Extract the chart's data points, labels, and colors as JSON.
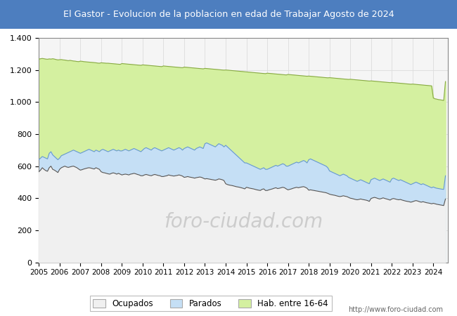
{
  "title": "El Gastor - Evolucion de la poblacion en edad de Trabajar Agosto de 2024",
  "title_bg": "#4d7ebf",
  "title_color": "white",
  "ylim": [
    0,
    1400
  ],
  "yticks": [
    0,
    200,
    400,
    600,
    800,
    1000,
    1200,
    1400
  ],
  "year_labels": [
    2005,
    2006,
    2007,
    2008,
    2009,
    2010,
    2011,
    2012,
    2013,
    2014,
    2015,
    2016,
    2017,
    2018,
    2019,
    2020,
    2021,
    2022,
    2023,
    2024
  ],
  "hab": [
    1268,
    1270,
    1272,
    1270,
    1268,
    1267,
    1269,
    1268,
    1270,
    1268,
    1265,
    1263,
    1264,
    1265,
    1263,
    1262,
    1260,
    1258,
    1260,
    1258,
    1256,
    1255,
    1253,
    1252,
    1255,
    1254,
    1252,
    1251,
    1250,
    1249,
    1248,
    1247,
    1246,
    1245,
    1243,
    1242,
    1245,
    1244,
    1243,
    1242,
    1242,
    1241,
    1240,
    1239,
    1238,
    1237,
    1236,
    1235,
    1240,
    1239,
    1238,
    1237,
    1236,
    1235,
    1234,
    1233,
    1232,
    1231,
    1230,
    1229,
    1232,
    1231,
    1230,
    1229,
    1228,
    1227,
    1226,
    1225,
    1224,
    1223,
    1222,
    1221,
    1225,
    1224,
    1223,
    1222,
    1221,
    1220,
    1219,
    1218,
    1217,
    1216,
    1215,
    1214,
    1218,
    1217,
    1216,
    1215,
    1214,
    1213,
    1212,
    1211,
    1210,
    1209,
    1208,
    1207,
    1210,
    1209,
    1208,
    1207,
    1206,
    1205,
    1204,
    1203,
    1202,
    1201,
    1200,
    1199,
    1200,
    1199,
    1198,
    1197,
    1196,
    1195,
    1194,
    1193,
    1192,
    1191,
    1190,
    1189,
    1188,
    1187,
    1186,
    1185,
    1184,
    1183,
    1182,
    1181,
    1180,
    1179,
    1178,
    1177,
    1180,
    1179,
    1178,
    1177,
    1176,
    1175,
    1174,
    1173,
    1172,
    1171,
    1170,
    1169,
    1172,
    1171,
    1170,
    1169,
    1168,
    1167,
    1166,
    1165,
    1164,
    1163,
    1162,
    1161,
    1162,
    1161,
    1160,
    1159,
    1158,
    1157,
    1156,
    1155,
    1154,
    1153,
    1152,
    1151,
    1152,
    1151,
    1150,
    1149,
    1148,
    1147,
    1146,
    1145,
    1144,
    1143,
    1142,
    1141,
    1142,
    1141,
    1140,
    1139,
    1138,
    1137,
    1136,
    1135,
    1134,
    1133,
    1132,
    1131,
    1132,
    1131,
    1130,
    1129,
    1128,
    1127,
    1126,
    1125,
    1124,
    1123,
    1122,
    1121,
    1122,
    1121,
    1120,
    1119,
    1118,
    1117,
    1116,
    1115,
    1114,
    1113,
    1112,
    1111,
    1112,
    1111,
    1110,
    1109,
    1108,
    1107,
    1106,
    1105,
    1104,
    1103,
    1102,
    1101,
    1025,
    1020,
    1018,
    1015,
    1014,
    1012,
    1010,
    1128
  ],
  "parados": [
    640,
    650,
    660,
    655,
    650,
    645,
    680,
    690,
    670,
    660,
    650,
    640,
    650,
    665,
    670,
    675,
    680,
    685,
    690,
    695,
    700,
    695,
    690,
    685,
    680,
    685,
    690,
    695,
    700,
    705,
    700,
    695,
    690,
    700,
    695,
    690,
    700,
    705,
    700,
    695,
    690,
    695,
    700,
    705,
    700,
    695,
    700,
    695,
    695,
    700,
    705,
    700,
    695,
    700,
    705,
    710,
    705,
    700,
    695,
    690,
    700,
    710,
    715,
    710,
    705,
    700,
    710,
    715,
    710,
    705,
    700,
    695,
    700,
    705,
    710,
    715,
    710,
    705,
    700,
    705,
    710,
    715,
    710,
    700,
    710,
    715,
    720,
    715,
    710,
    705,
    700,
    710,
    715,
    720,
    715,
    710,
    740,
    745,
    740,
    735,
    730,
    725,
    720,
    730,
    740,
    735,
    730,
    720,
    730,
    720,
    710,
    700,
    690,
    680,
    670,
    660,
    650,
    640,
    630,
    620,
    620,
    615,
    610,
    605,
    600,
    595,
    590,
    585,
    580,
    585,
    590,
    580,
    580,
    585,
    590,
    595,
    600,
    605,
    600,
    605,
    610,
    615,
    610,
    600,
    600,
    605,
    610,
    615,
    620,
    625,
    620,
    625,
    630,
    635,
    630,
    620,
    640,
    645,
    640,
    635,
    630,
    625,
    620,
    615,
    610,
    605,
    600,
    590,
    570,
    565,
    560,
    555,
    550,
    545,
    540,
    545,
    550,
    545,
    540,
    530,
    525,
    520,
    515,
    510,
    505,
    510,
    515,
    510,
    505,
    500,
    495,
    490,
    515,
    520,
    525,
    520,
    515,
    510,
    515,
    520,
    515,
    510,
    505,
    500,
    520,
    525,
    520,
    515,
    510,
    515,
    510,
    505,
    500,
    495,
    490,
    485,
    490,
    495,
    500,
    495,
    490,
    485,
    490,
    485,
    480,
    475,
    470,
    465,
    470,
    465,
    462,
    460,
    458,
    456,
    455,
    540
  ],
  "ocupados": [
    565,
    575,
    590,
    580,
    572,
    568,
    590,
    600,
    580,
    575,
    568,
    560,
    580,
    590,
    595,
    600,
    595,
    592,
    595,
    598,
    600,
    595,
    590,
    582,
    575,
    578,
    582,
    585,
    588,
    590,
    588,
    585,
    582,
    590,
    585,
    580,
    565,
    560,
    558,
    555,
    552,
    550,
    555,
    558,
    555,
    550,
    555,
    550,
    545,
    548,
    550,
    548,
    545,
    550,
    552,
    555,
    552,
    548,
    545,
    540,
    540,
    545,
    548,
    545,
    542,
    540,
    545,
    548,
    545,
    542,
    540,
    535,
    535,
    538,
    540,
    545,
    542,
    540,
    538,
    540,
    542,
    545,
    542,
    538,
    530,
    532,
    535,
    532,
    530,
    528,
    525,
    528,
    530,
    532,
    530,
    525,
    520,
    522,
    520,
    518,
    516,
    514,
    512,
    515,
    520,
    518,
    515,
    510,
    490,
    485,
    482,
    480,
    478,
    475,
    472,
    470,
    468,
    465,
    462,
    458,
    468,
    465,
    462,
    460,
    458,
    455,
    452,
    450,
    448,
    455,
    458,
    448,
    448,
    452,
    455,
    458,
    462,
    465,
    460,
    462,
    465,
    468,
    465,
    458,
    452,
    455,
    458,
    462,
    465,
    468,
    465,
    468,
    470,
    472,
    468,
    462,
    450,
    452,
    450,
    448,
    446,
    444,
    442,
    440,
    438,
    436,
    434,
    430,
    425,
    422,
    420,
    418,
    415,
    412,
    410,
    412,
    415,
    412,
    410,
    405,
    400,
    398,
    395,
    392,
    390,
    392,
    395,
    392,
    390,
    388,
    385,
    380,
    398,
    402,
    405,
    402,
    398,
    395,
    398,
    402,
    398,
    395,
    392,
    388,
    395,
    398,
    395,
    392,
    390,
    392,
    388,
    385,
    382,
    380,
    378,
    375,
    378,
    382,
    385,
    382,
    378,
    375,
    378,
    375,
    372,
    370,
    368,
    365,
    368,
    365,
    362,
    360,
    358,
    356,
    354,
    395
  ],
  "hab_color": "#d4f0a0",
  "parados_color": "#c5dff5",
  "ocupados_color": "#f0f0f0",
  "hab_line_color": "#88aa44",
  "parados_line_color": "#6699cc",
  "ocupados_line_color": "#555555",
  "watermark": "http://www.foro-ciudad.com",
  "watermark_main": "foro-ciudad.com",
  "legend_labels": [
    "Ocupados",
    "Parados",
    "Hab. entre 16-64"
  ],
  "grid_color": "#dddddd",
  "plot_bg": "#f5f5f5",
  "fig_bg": "#ffffff",
  "border_color": "#888888"
}
